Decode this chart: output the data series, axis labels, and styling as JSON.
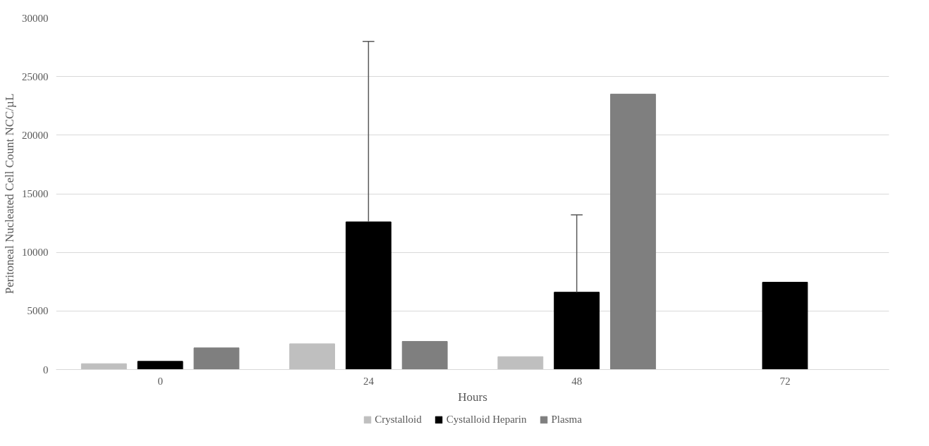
{
  "chart_data": {
    "type": "bar",
    "xlabel": "Hours",
    "ylabel": "Peritoneal Nucleated Cell Count NCC/µL",
    "categories": [
      "0",
      "24",
      "48",
      "72"
    ],
    "series": [
      {
        "name": "Crystalloid",
        "color": "#bfbfbf",
        "values": [
          500,
          2200,
          1100,
          null
        ]
      },
      {
        "name": "Cystalloid Heparin",
        "color": "#000000",
        "values": [
          700,
          12600,
          6600,
          7450
        ],
        "errors": [
          null,
          [
            12600,
            28000
          ],
          [
            6600,
            13200
          ],
          null
        ]
      },
      {
        "name": "Plasma",
        "color": "#7f7f7f",
        "values": [
          1850,
          2400,
          23500,
          null
        ]
      }
    ],
    "ylim": [
      0,
      30000
    ],
    "yticks": [
      0,
      5000,
      10000,
      15000,
      20000,
      25000,
      30000
    ],
    "grid": "y",
    "legend": "bottom"
  }
}
